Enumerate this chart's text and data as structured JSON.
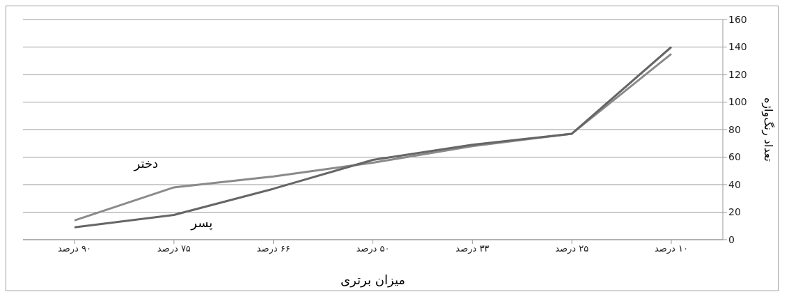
{
  "chart_data": {
    "type": "line",
    "xlabel": "میزان برتری",
    "ylabel": "تعداد رنگ‌واژه",
    "categories": [
      "۹۰ درصد",
      "۷۵ درصد",
      "۶۶ درصد",
      "۵۰ درصد",
      "۳۳ درصد",
      "۲۵ درصد",
      "۱۰ درصد"
    ],
    "series": [
      {
        "name": "دختر",
        "color": "#8a8a8a",
        "values": [
          14,
          38,
          46,
          56,
          68,
          77,
          135
        ]
      },
      {
        "name": "پسر",
        "color": "#666666",
        "values": [
          9,
          18,
          37,
          58,
          69,
          77,
          140
        ]
      }
    ],
    "ylim": [
      0,
      160
    ],
    "yticks": [
      0,
      20,
      40,
      60,
      80,
      100,
      120,
      140,
      160
    ],
    "grid": "y",
    "marker": "none",
    "line_style": "solid"
  }
}
